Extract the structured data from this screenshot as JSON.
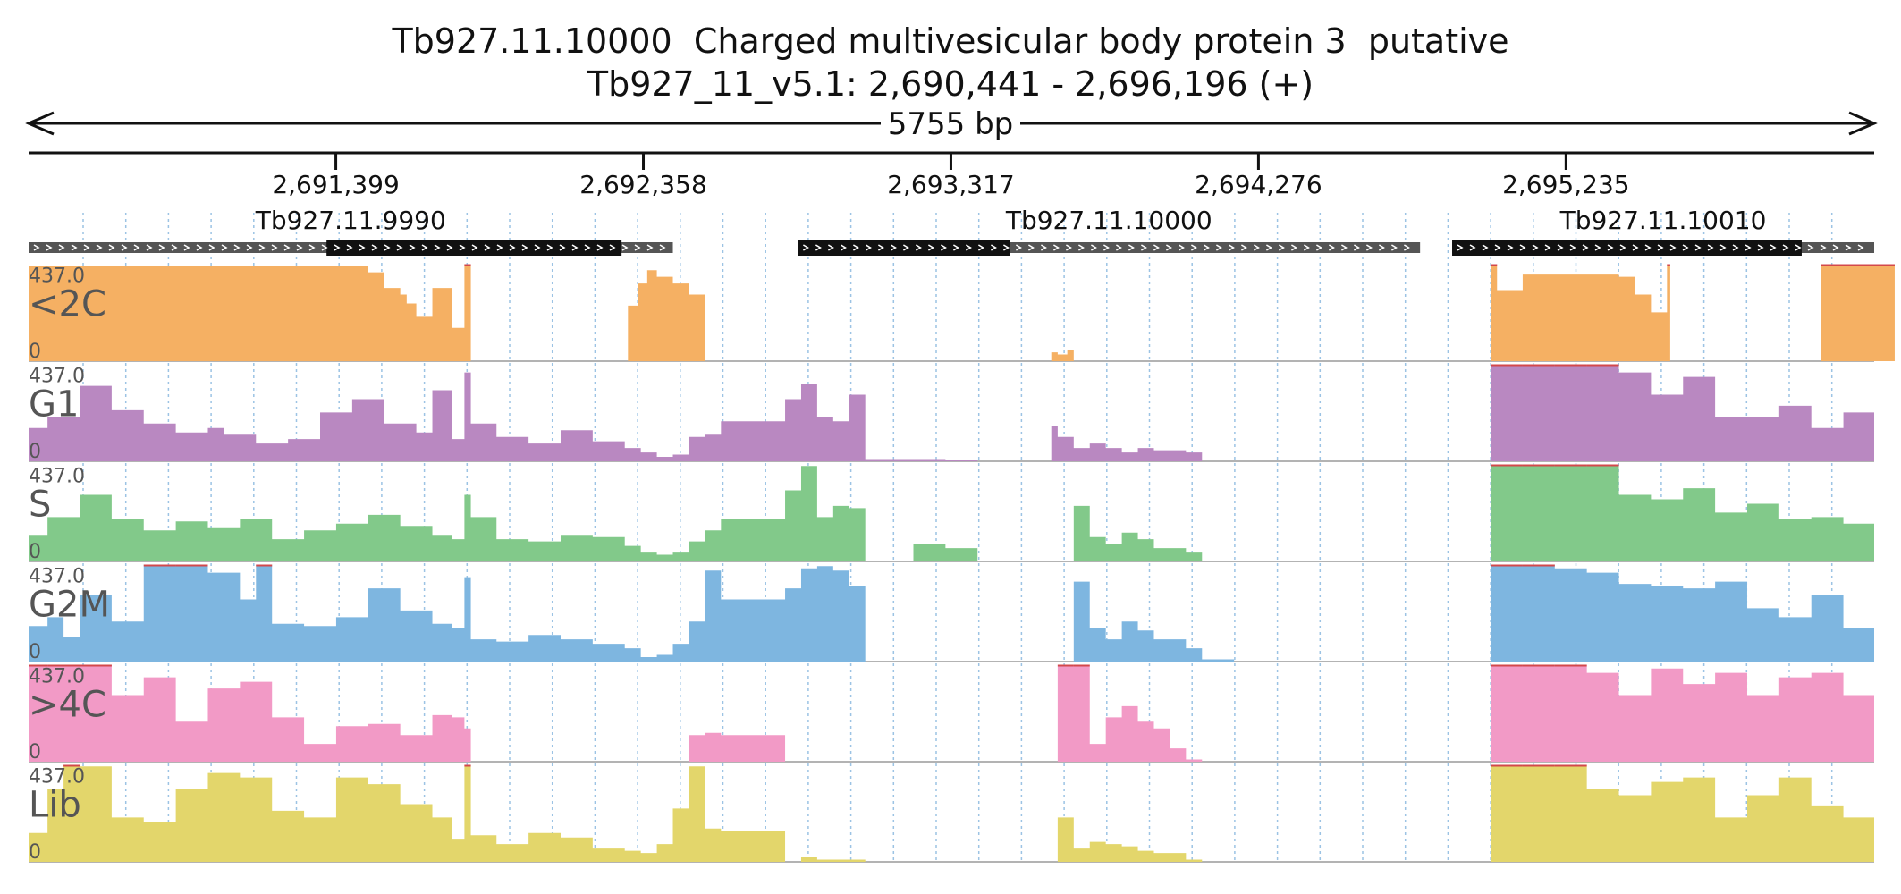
{
  "title": "Tb927.11.10000  Charged multivesicular body protein 3  putative",
  "subtitle": "Tb927_11_v5.1: 2,690,441 - 2,696,196 (+)",
  "span_label": "5755 bp",
  "chart_data": {
    "type": "area",
    "region": {
      "chrom": "Tb927_11_v5.1",
      "start": 2690441,
      "end": 2696196,
      "strand": "+"
    },
    "x_ticks": [
      {
        "value": 2691399,
        "label": "2,691,399"
      },
      {
        "value": 2692358,
        "label": "2,692,358"
      },
      {
        "value": 2693317,
        "label": "2,693,317"
      },
      {
        "value": 2694276,
        "label": "2,694,276"
      },
      {
        "value": 2695235,
        "label": "2,695,235"
      }
    ],
    "genes": [
      {
        "name": "Tb927.11.9990",
        "start": 2690441,
        "end": 2692450,
        "cds_start": 2691370,
        "cds_end": 2692290
      },
      {
        "name": "Tb927.11.10000",
        "start": 2692840,
        "end": 2694780,
        "cds_start": 2692840,
        "cds_end": 2693500
      },
      {
        "name": "Tb927.11.10010",
        "start": 2694880,
        "end": 2696196,
        "cds_start": 2694880,
        "cds_end": 2695970
      }
    ],
    "y_max_label": "437.0",
    "y_min_label": "0",
    "ylim": [
      0,
      437
    ],
    "series": [
      {
        "name": "<2C",
        "color": "#f5b063",
        "x": [
          2690441,
          2690600,
          2690800,
          2690900,
          2691000,
          2691200,
          2691400,
          2691500,
          2691550,
          2691600,
          2691620,
          2691650,
          2691700,
          2691760,
          2691800,
          2691820,
          2692290,
          2692310,
          2692340,
          2692370,
          2692400,
          2692450,
          2692500,
          2692550,
          2693050,
          2693100,
          2693450,
          2693500,
          2693600,
          2693630,
          2693650,
          2693680,
          2693700,
          2694990,
          2695000,
          2695020,
          2695100,
          2695200,
          2695300,
          2695400,
          2695450,
          2695500,
          2695550,
          2695560,
          2696020,
          2696030,
          2696260
        ],
        "y": [
          430,
          430,
          430,
          430,
          430,
          430,
          430,
          400,
          330,
          300,
          260,
          200,
          330,
          150,
          437,
          0,
          0,
          250,
          350,
          410,
          380,
          350,
          300,
          0,
          0,
          0,
          0,
          0,
          0,
          40,
          30,
          50,
          0,
          0,
          437,
          320,
          390,
          390,
          390,
          380,
          300,
          220,
          437,
          0,
          0,
          437,
          0
        ]
      },
      {
        "name": "G1",
        "color": "#b988c1",
        "x": [
          2690441,
          2690500,
          2690600,
          2690700,
          2690800,
          2690900,
          2691000,
          2691050,
          2691150,
          2691250,
          2691350,
          2691450,
          2691550,
          2691650,
          2691700,
          2691760,
          2691800,
          2691820,
          2691900,
          2692000,
          2692100,
          2692200,
          2692300,
          2692350,
          2692400,
          2692450,
          2692500,
          2692550,
          2692600,
          2692800,
          2692850,
          2692900,
          2692950,
          2693000,
          2693050,
          2693100,
          2693200,
          2693300,
          2693400,
          2693500,
          2693600,
          2693630,
          2693650,
          2693700,
          2693750,
          2693800,
          2693850,
          2693900,
          2693950,
          2694050,
          2694100,
          2694200,
          2694300,
          2694400,
          2694500,
          2694600,
          2694700,
          2694800,
          2694900,
          2694990,
          2695000,
          2695100,
          2695200,
          2695300,
          2695400,
          2695500,
          2695600,
          2695700,
          2695800,
          2695900,
          2696000,
          2696100,
          2696196
        ],
        "y": [
          150,
          200,
          340,
          230,
          170,
          130,
          150,
          120,
          80,
          100,
          220,
          280,
          170,
          130,
          320,
          100,
          400,
          170,
          110,
          80,
          140,
          90,
          60,
          40,
          20,
          30,
          110,
          120,
          180,
          280,
          350,
          200,
          180,
          300,
          10,
          10,
          10,
          5,
          0,
          0,
          0,
          160,
          110,
          60,
          80,
          60,
          40,
          60,
          50,
          40,
          0,
          0,
          0,
          0,
          0,
          0,
          0,
          0,
          0,
          0,
          437,
          437,
          437,
          437,
          400,
          300,
          380,
          200,
          200,
          250,
          150,
          220,
          130
        ]
      },
      {
        "name": "S",
        "color": "#82c98a",
        "x": [
          2690441,
          2690500,
          2690600,
          2690700,
          2690800,
          2690900,
          2691000,
          2691100,
          2691200,
          2691300,
          2691400,
          2691500,
          2691600,
          2691700,
          2691760,
          2691800,
          2691820,
          2691900,
          2692000,
          2692100,
          2692200,
          2692300,
          2692350,
          2692400,
          2692450,
          2692500,
          2692550,
          2692600,
          2692800,
          2692850,
          2692900,
          2692950,
          2693000,
          2693050,
          2693100,
          2693200,
          2693300,
          2693400,
          2693500,
          2693600,
          2693650,
          2693700,
          2693750,
          2693800,
          2693850,
          2693900,
          2693950,
          2694050,
          2694100,
          2694200,
          2694300,
          2694400,
          2694500,
          2694600,
          2694700,
          2694800,
          2694900,
          2694990,
          2695000,
          2695100,
          2695200,
          2695300,
          2695400,
          2695500,
          2695600,
          2695700,
          2695800,
          2695900,
          2696000,
          2696100,
          2696196
        ],
        "y": [
          120,
          200,
          300,
          190,
          140,
          180,
          150,
          190,
          100,
          140,
          170,
          210,
          160,
          120,
          100,
          300,
          200,
          100,
          90,
          120,
          110,
          70,
          40,
          30,
          40,
          90,
          140,
          190,
          320,
          430,
          200,
          250,
          240,
          0,
          0,
          80,
          60,
          0,
          0,
          0,
          0,
          250,
          110,
          80,
          130,
          100,
          60,
          40,
          0,
          0,
          0,
          0,
          0,
          0,
          0,
          0,
          0,
          0,
          437,
          437,
          437,
          437,
          300,
          280,
          330,
          220,
          260,
          190,
          200,
          170,
          120
        ]
      },
      {
        "name": "G2M",
        "color": "#7eb6e0",
        "x": [
          2690441,
          2690500,
          2690550,
          2690600,
          2690700,
          2690800,
          2690900,
          2691000,
          2691100,
          2691150,
          2691200,
          2691300,
          2691400,
          2691500,
          2691600,
          2691700,
          2691760,
          2691800,
          2691820,
          2691900,
          2692000,
          2692100,
          2692200,
          2692300,
          2692350,
          2692400,
          2692450,
          2692500,
          2692550,
          2692600,
          2692800,
          2692850,
          2692900,
          2692950,
          2693000,
          2693050,
          2693100,
          2693200,
          2693300,
          2693400,
          2693500,
          2693600,
          2693650,
          2693700,
          2693750,
          2693800,
          2693850,
          2693900,
          2693950,
          2694050,
          2694100,
          2694200,
          2694300,
          2694400,
          2694500,
          2694600,
          2694700,
          2694800,
          2694900,
          2694990,
          2695000,
          2695100,
          2695200,
          2695300,
          2695400,
          2695500,
          2695600,
          2695700,
          2695800,
          2695900,
          2696000,
          2696100,
          2696196
        ],
        "y": [
          160,
          200,
          110,
          300,
          180,
          437,
          437,
          400,
          280,
          437,
          170,
          160,
          200,
          330,
          230,
          170,
          150,
          380,
          100,
          90,
          120,
          100,
          80,
          60,
          20,
          30,
          80,
          180,
          410,
          280,
          330,
          420,
          430,
          410,
          340,
          0,
          0,
          0,
          0,
          0,
          0,
          0,
          0,
          360,
          150,
          100,
          180,
          140,
          100,
          60,
          10,
          0,
          0,
          0,
          0,
          0,
          0,
          0,
          0,
          0,
          437,
          437,
          420,
          400,
          350,
          340,
          330,
          360,
          240,
          200,
          300,
          150,
          80
        ]
      },
      {
        "name": ">4C",
        "color": "#f29ac6",
        "x": [
          2690441,
          2690500,
          2690600,
          2690700,
          2690800,
          2690900,
          2691000,
          2691100,
          2691200,
          2691300,
          2691400,
          2691500,
          2691600,
          2691700,
          2691760,
          2691800,
          2691820,
          2691900,
          2692000,
          2692100,
          2692200,
          2692300,
          2692350,
          2692400,
          2692450,
          2692500,
          2692550,
          2692600,
          2692800,
          2692850,
          2692900,
          2692950,
          2693000,
          2693050,
          2693100,
          2693200,
          2693300,
          2693400,
          2693500,
          2693600,
          2693650,
          2693700,
          2693750,
          2693800,
          2693850,
          2693900,
          2693950,
          2694000,
          2694050,
          2694100,
          2694200,
          2694300,
          2694400,
          2694500,
          2694600,
          2694700,
          2694800,
          2694900,
          2694990,
          2695000,
          2695100,
          2695200,
          2695300,
          2695400,
          2695500,
          2695600,
          2695700,
          2695800,
          2695900,
          2696000,
          2696100,
          2696196
        ],
        "y": [
          437,
          437,
          437,
          300,
          380,
          180,
          330,
          360,
          200,
          80,
          160,
          170,
          120,
          210,
          200,
          150,
          0,
          0,
          0,
          0,
          0,
          0,
          0,
          0,
          0,
          120,
          130,
          120,
          0,
          0,
          0,
          0,
          0,
          0,
          0,
          0,
          0,
          0,
          0,
          0,
          437,
          437,
          80,
          200,
          250,
          180,
          150,
          60,
          10,
          0,
          0,
          0,
          0,
          0,
          0,
          0,
          0,
          0,
          0,
          437,
          437,
          437,
          400,
          300,
          420,
          350,
          400,
          300,
          380,
          400,
          300,
          330
        ]
      },
      {
        "name": "Lib",
        "color": "#e3d66b",
        "x": [
          2690441,
          2690500,
          2690550,
          2690600,
          2690700,
          2690800,
          2690900,
          2691000,
          2691100,
          2691200,
          2691300,
          2691400,
          2691500,
          2691600,
          2691700,
          2691760,
          2691800,
          2691820,
          2691900,
          2692000,
          2692100,
          2692200,
          2692300,
          2692350,
          2692400,
          2692450,
          2692500,
          2692550,
          2692600,
          2692800,
          2692850,
          2692900,
          2692950,
          2693000,
          2693050,
          2693100,
          2693200,
          2693300,
          2693400,
          2693500,
          2693600,
          2693650,
          2693700,
          2693750,
          2693800,
          2693850,
          2693900,
          2693950,
          2694050,
          2694100,
          2694200,
          2694300,
          2694400,
          2694500,
          2694600,
          2694700,
          2694800,
          2694900,
          2694990,
          2695000,
          2695100,
          2695200,
          2695300,
          2695400,
          2695500,
          2695600,
          2695700,
          2695800,
          2695900,
          2696000,
          2696100,
          2696196
        ],
        "y": [
          130,
          330,
          437,
          430,
          200,
          180,
          330,
          400,
          380,
          230,
          200,
          380,
          350,
          260,
          200,
          100,
          437,
          120,
          80,
          130,
          110,
          60,
          50,
          40,
          80,
          240,
          430,
          150,
          140,
          0,
          20,
          10,
          10,
          10,
          0,
          0,
          0,
          0,
          0,
          0,
          0,
          200,
          60,
          90,
          80,
          70,
          50,
          40,
          10,
          0,
          0,
          0,
          0,
          0,
          0,
          0,
          0,
          0,
          0,
          437,
          437,
          437,
          330,
          300,
          360,
          380,
          200,
          300,
          380,
          250,
          200,
          150
        ]
      }
    ]
  }
}
